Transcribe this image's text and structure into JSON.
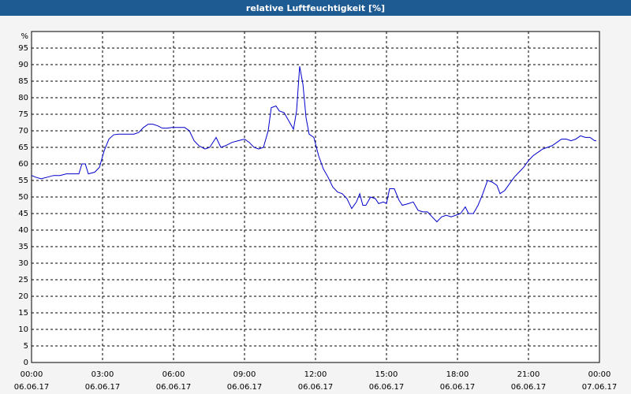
{
  "chart_data": {
    "type": "line",
    "title": "relative Luftfeuchtigkeit [%]",
    "ylabel": "%",
    "xlim": [
      0,
      24
    ],
    "ylim": [
      0,
      100
    ],
    "xticks": [
      {
        "value": 0,
        "label": [
          "00:00",
          "06.06.17"
        ]
      },
      {
        "value": 3,
        "label": [
          "03:00",
          "06.06.17"
        ]
      },
      {
        "value": 6,
        "label": [
          "06:00",
          "06.06.17"
        ]
      },
      {
        "value": 9,
        "label": [
          "09:00",
          "06.06.17"
        ]
      },
      {
        "value": 12,
        "label": [
          "12:00",
          "06.06.17"
        ]
      },
      {
        "value": 15,
        "label": [
          "15:00",
          "06.06.17"
        ]
      },
      {
        "value": 18,
        "label": [
          "18:00",
          "06.06.17"
        ]
      },
      {
        "value": 21,
        "label": [
          "21:00",
          "06.06.17"
        ]
      },
      {
        "value": 24,
        "label": [
          "00:00",
          "07.06.17"
        ]
      }
    ],
    "yticks": [
      0,
      5,
      10,
      15,
      20,
      25,
      30,
      35,
      40,
      45,
      50,
      55,
      60,
      65,
      70,
      75,
      80,
      85,
      90,
      95
    ],
    "grid": true,
    "series": [
      {
        "name": "relative Luftfeuchtigkeit",
        "color": "#0000cc",
        "x": [
          0,
          0.17,
          0.4,
          0.67,
          0.93,
          1.2,
          1.47,
          1.83,
          2,
          2.13,
          2.27,
          2.4,
          2.67,
          2.87,
          3.07,
          3.27,
          3.47,
          3.67,
          4,
          4.33,
          4.53,
          4.73,
          4.93,
          5.13,
          5.33,
          5.53,
          5.73,
          5.93,
          6.2,
          6.47,
          6.67,
          6.87,
          7.07,
          7.33,
          7.53,
          7.8,
          8,
          8.2,
          8.47,
          8.73,
          9,
          9.2,
          9.4,
          9.6,
          9.8,
          10,
          10.13,
          10.33,
          10.47,
          10.67,
          10.87,
          11.07,
          11.2,
          11.33,
          11.47,
          11.6,
          11.73,
          11.93,
          12.13,
          12.33,
          12.53,
          12.73,
          12.93,
          13.13,
          13.33,
          13.53,
          13.73,
          13.87,
          14,
          14.13,
          14.33,
          14.53,
          14.67,
          14.87,
          15,
          15.13,
          15.33,
          15.53,
          15.67,
          15.93,
          16.13,
          16.33,
          16.53,
          16.73,
          16.93,
          17.13,
          17.33,
          17.53,
          17.73,
          17.93,
          18.13,
          18.33,
          18.47,
          18.67,
          18.87,
          19.07,
          19.27,
          19.47,
          19.67,
          19.8,
          20,
          20.2,
          20.4,
          20.6,
          20.8,
          21,
          21.2,
          21.4,
          21.6,
          21.8,
          22,
          22.2,
          22.4,
          22.6,
          22.8,
          23,
          23.2,
          23.4,
          23.6,
          23.8,
          23.87
        ],
        "values": [
          56.5,
          56,
          55.5,
          56,
          56.5,
          56.5,
          57,
          57,
          57,
          60,
          60,
          57,
          57.5,
          59,
          64,
          67.5,
          68.8,
          69,
          69,
          69,
          69.5,
          71,
          72,
          72,
          71.5,
          70.8,
          70.8,
          71,
          71,
          71,
          70,
          67,
          65.5,
          64.5,
          65,
          68,
          65,
          65.5,
          66.5,
          67,
          67.5,
          66.5,
          65,
          64.5,
          65,
          70,
          77,
          77.5,
          76,
          75.5,
          73,
          70.5,
          76,
          89.5,
          84,
          74,
          69,
          68,
          62.5,
          58.5,
          56,
          53,
          51.5,
          51,
          49.5,
          46.5,
          48.5,
          51,
          47.5,
          47.5,
          50,
          49.5,
          48,
          48.5,
          48,
          52.5,
          52.5,
          49,
          47.5,
          48,
          48.5,
          46,
          45.5,
          45.5,
          44,
          42.5,
          44,
          44.5,
          44,
          44.5,
          45,
          47,
          45,
          45,
          47.5,
          51,
          55,
          54.5,
          53.5,
          51,
          52,
          54,
          56,
          57.5,
          59,
          61,
          62.5,
          63.5,
          64.5,
          65,
          65.5,
          66.5,
          67.5,
          67.5,
          67,
          67.5,
          68.5,
          68,
          68,
          67,
          67
        ]
      }
    ]
  }
}
